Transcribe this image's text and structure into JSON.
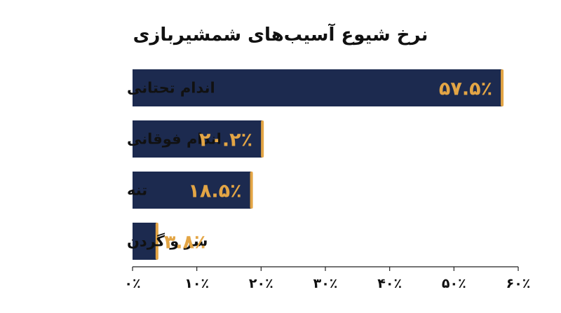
{
  "chart_data": {
    "type": "bar",
    "orientation": "horizontal",
    "title": "نرخ شیوع آسیب‌های شمشیربازی",
    "categories": [
      "اندام تحتانی",
      "اندام فوقانی",
      "تنه",
      "سر و گردن"
    ],
    "values": [
      57.5,
      20.2,
      18.5,
      3.8
    ],
    "data_labels": [
      "۵۷.۵٪",
      "۲۰.۲٪",
      "۱۸.۵٪",
      "۳.۸٪"
    ],
    "xlim": [
      0,
      60
    ],
    "x_ticks": [
      0,
      10,
      20,
      30,
      40,
      50,
      60
    ],
    "x_tick_labels": [
      "۰٪",
      "۱۰٪",
      "۲۰٪",
      "۳۰٪",
      "۴۰٪",
      "۵۰٪",
      "۶۰٪"
    ],
    "xlabel": "",
    "ylabel": "",
    "grid": false,
    "legend": "none",
    "colors": {
      "bar": "#1c2a4f",
      "accent": "#e3a545",
      "axis": "#222222",
      "text": "#111111"
    }
  }
}
